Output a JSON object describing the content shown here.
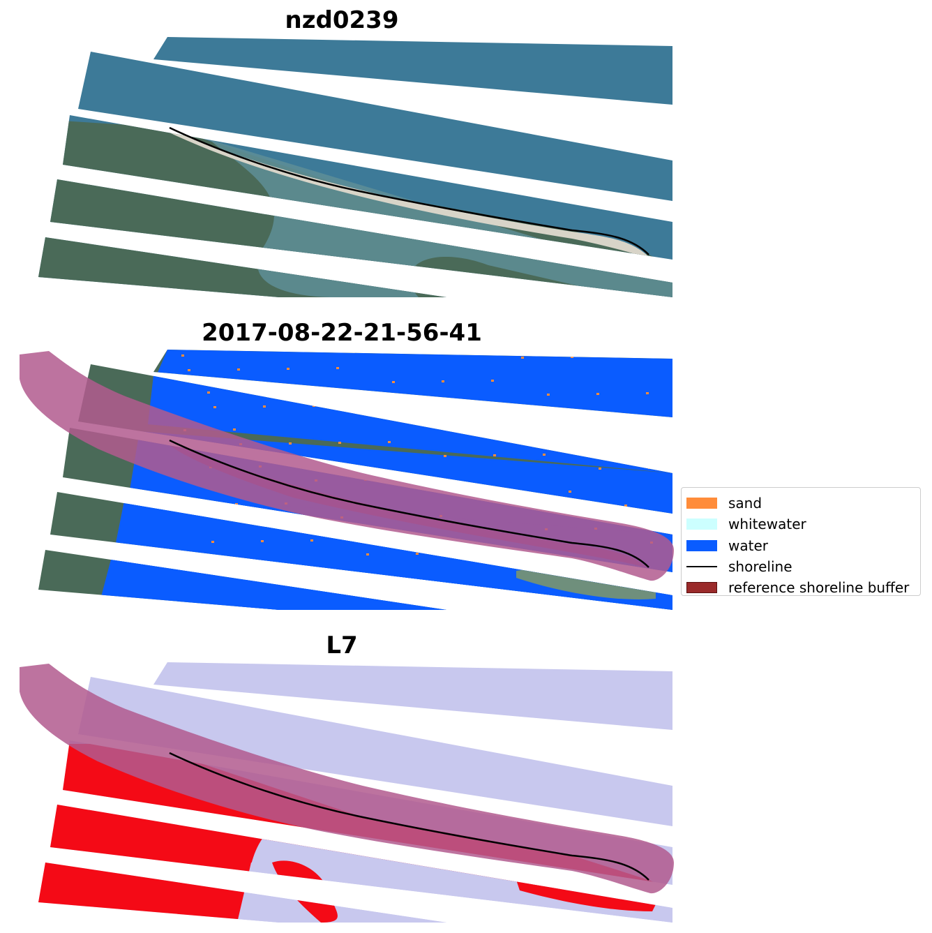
{
  "panels": [
    {
      "title": "nzd0239"
    },
    {
      "title": "2017-08-22-21-56-41"
    },
    {
      "title": "L7"
    }
  ],
  "legend": {
    "placement": "center-right",
    "items": [
      {
        "label": "sand",
        "color": "#ff8c3a",
        "kind": "patch"
      },
      {
        "label": "whitewater",
        "color": "#ccffff",
        "kind": "patch"
      },
      {
        "label": "water",
        "color": "#0a5cff",
        "kind": "patch"
      },
      {
        "label": "shoreline",
        "color": "#000000",
        "kind": "line"
      },
      {
        "label": "reference shoreline buffer",
        "color": "#9a2a2a",
        "kind": "patch"
      }
    ]
  },
  "colors": {
    "rgb_sea": "#3d7a98",
    "rgb_land": "#4a6a58",
    "rgb_beach": "#d8d4c8",
    "class_water": "#0a5cff",
    "buffer": "#b15a8e",
    "index_water": "#c8c8ee",
    "index_land": "#f40a16"
  }
}
